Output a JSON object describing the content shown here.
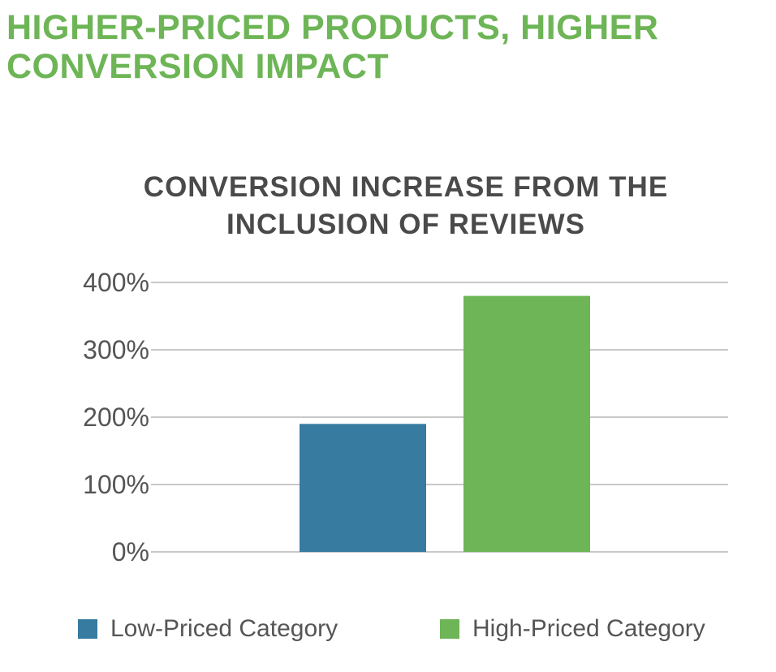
{
  "headline": {
    "line1": "HIGHER-PRICED PRODUCTS, HIGHER",
    "line2": "CONVERSION IMPACT"
  },
  "chart_data": {
    "type": "bar",
    "title_lines": [
      "CONVERSION INCREASE FROM THE",
      "INCLUSION OF REVIEWS"
    ],
    "xlabel": "",
    "ylabel": "",
    "ylim": [
      0,
      400
    ],
    "yticks": [
      0,
      100,
      200,
      300,
      400
    ],
    "ytick_labels": [
      "0%",
      "100%",
      "200%",
      "300%",
      "400%"
    ],
    "grid": true,
    "legend_position": "bottom",
    "series": [
      {
        "name": "Low-Priced Category",
        "value": 190,
        "color": "#377ba0"
      },
      {
        "name": "High-Priced Category",
        "value": 380,
        "color": "#6db556"
      }
    ]
  }
}
